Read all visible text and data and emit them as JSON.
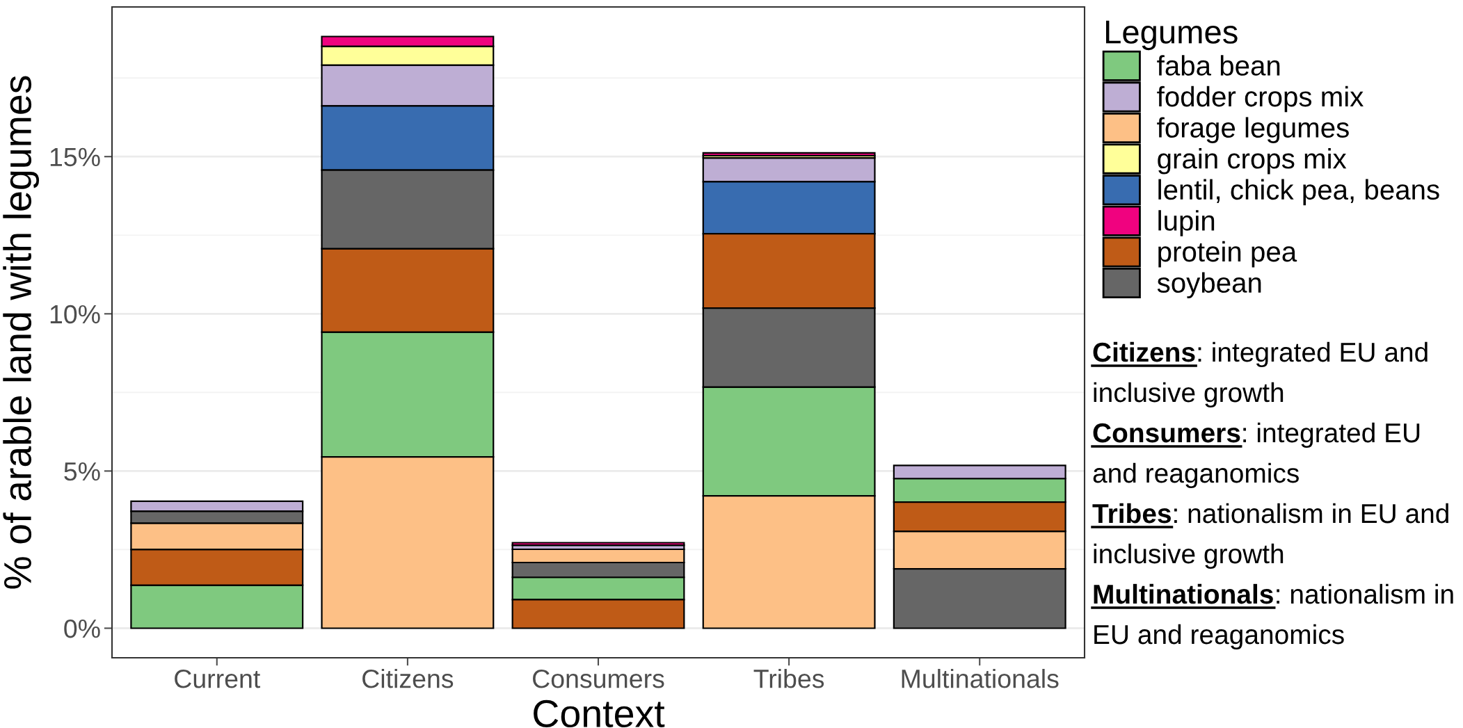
{
  "chart_data": {
    "type": "bar",
    "xlabel": "Context",
    "ylabel": "% of arable land with legumes",
    "legend_title": "Legumes",
    "categories": [
      "Current",
      "Citizens",
      "Consumers",
      "Tribes",
      "Multinationals"
    ],
    "ylim": [
      -0.94,
      19.76
    ],
    "yticks": [
      {
        "value": 0,
        "label": "0%"
      },
      {
        "value": 5,
        "label": "5%"
      },
      {
        "value": 10,
        "label": "10%"
      },
      {
        "value": 15,
        "label": "15%"
      }
    ],
    "grid": "y",
    "legend": "right",
    "series": [
      {
        "name": "faba bean",
        "color": "#7fc97f",
        "values": [
          1.37,
          3.97,
          0.71,
          3.46,
          0.75
        ],
        "base": [
          0,
          5.45,
          0.91,
          4.21,
          4.01
        ]
      },
      {
        "name": "fodder crops mix",
        "color": "#beaed4",
        "values": [
          0.32,
          1.3,
          0.13,
          0.76,
          0.42
        ],
        "base": [
          3.72,
          16.61,
          2.51,
          14.2,
          4.76
        ]
      },
      {
        "name": "forage legumes",
        "color": "#fdc086",
        "values": [
          0.84,
          5.45,
          0.42,
          4.21,
          1.19
        ],
        "base": [
          2.5,
          0,
          2.09,
          0,
          1.89
        ]
      },
      {
        "name": "grain crops mix",
        "color": "#ffff99",
        "values": [
          null,
          0.6,
          null,
          0.07,
          null
        ],
        "base": [
          null,
          17.91,
          null,
          14.96,
          null
        ]
      },
      {
        "name": "lentil, chick pea, beans",
        "color": "#386cb0",
        "values": [
          null,
          2.04,
          null,
          1.65,
          null
        ],
        "base": [
          null,
          14.57,
          null,
          12.55,
          null
        ]
      },
      {
        "name": "lupin",
        "color": "#f0027f",
        "values": [
          null,
          0.31,
          0.08,
          0.09,
          null
        ],
        "base": [
          null,
          18.51,
          2.64,
          15.03,
          null
        ]
      },
      {
        "name": "protein pea",
        "color": "#bf5b17",
        "values": [
          1.13,
          2.65,
          0.91,
          2.37,
          0.93
        ],
        "base": [
          1.37,
          9.42,
          0,
          10.18,
          3.08
        ]
      },
      {
        "name": "soybean",
        "color": "#666666",
        "values": [
          0.38,
          2.5,
          0.47,
          2.51,
          1.89
        ],
        "base": [
          3.34,
          12.07,
          1.62,
          7.67,
          0
        ]
      }
    ],
    "annotations": [
      "Citizens: integrated EU and inclusive growth",
      "Consumers: integrated EU and reaganomics",
      "Tribes: nationalism in EU and inclusive growth",
      "Multinationals: nationalism in EU and reaganomics"
    ]
  }
}
